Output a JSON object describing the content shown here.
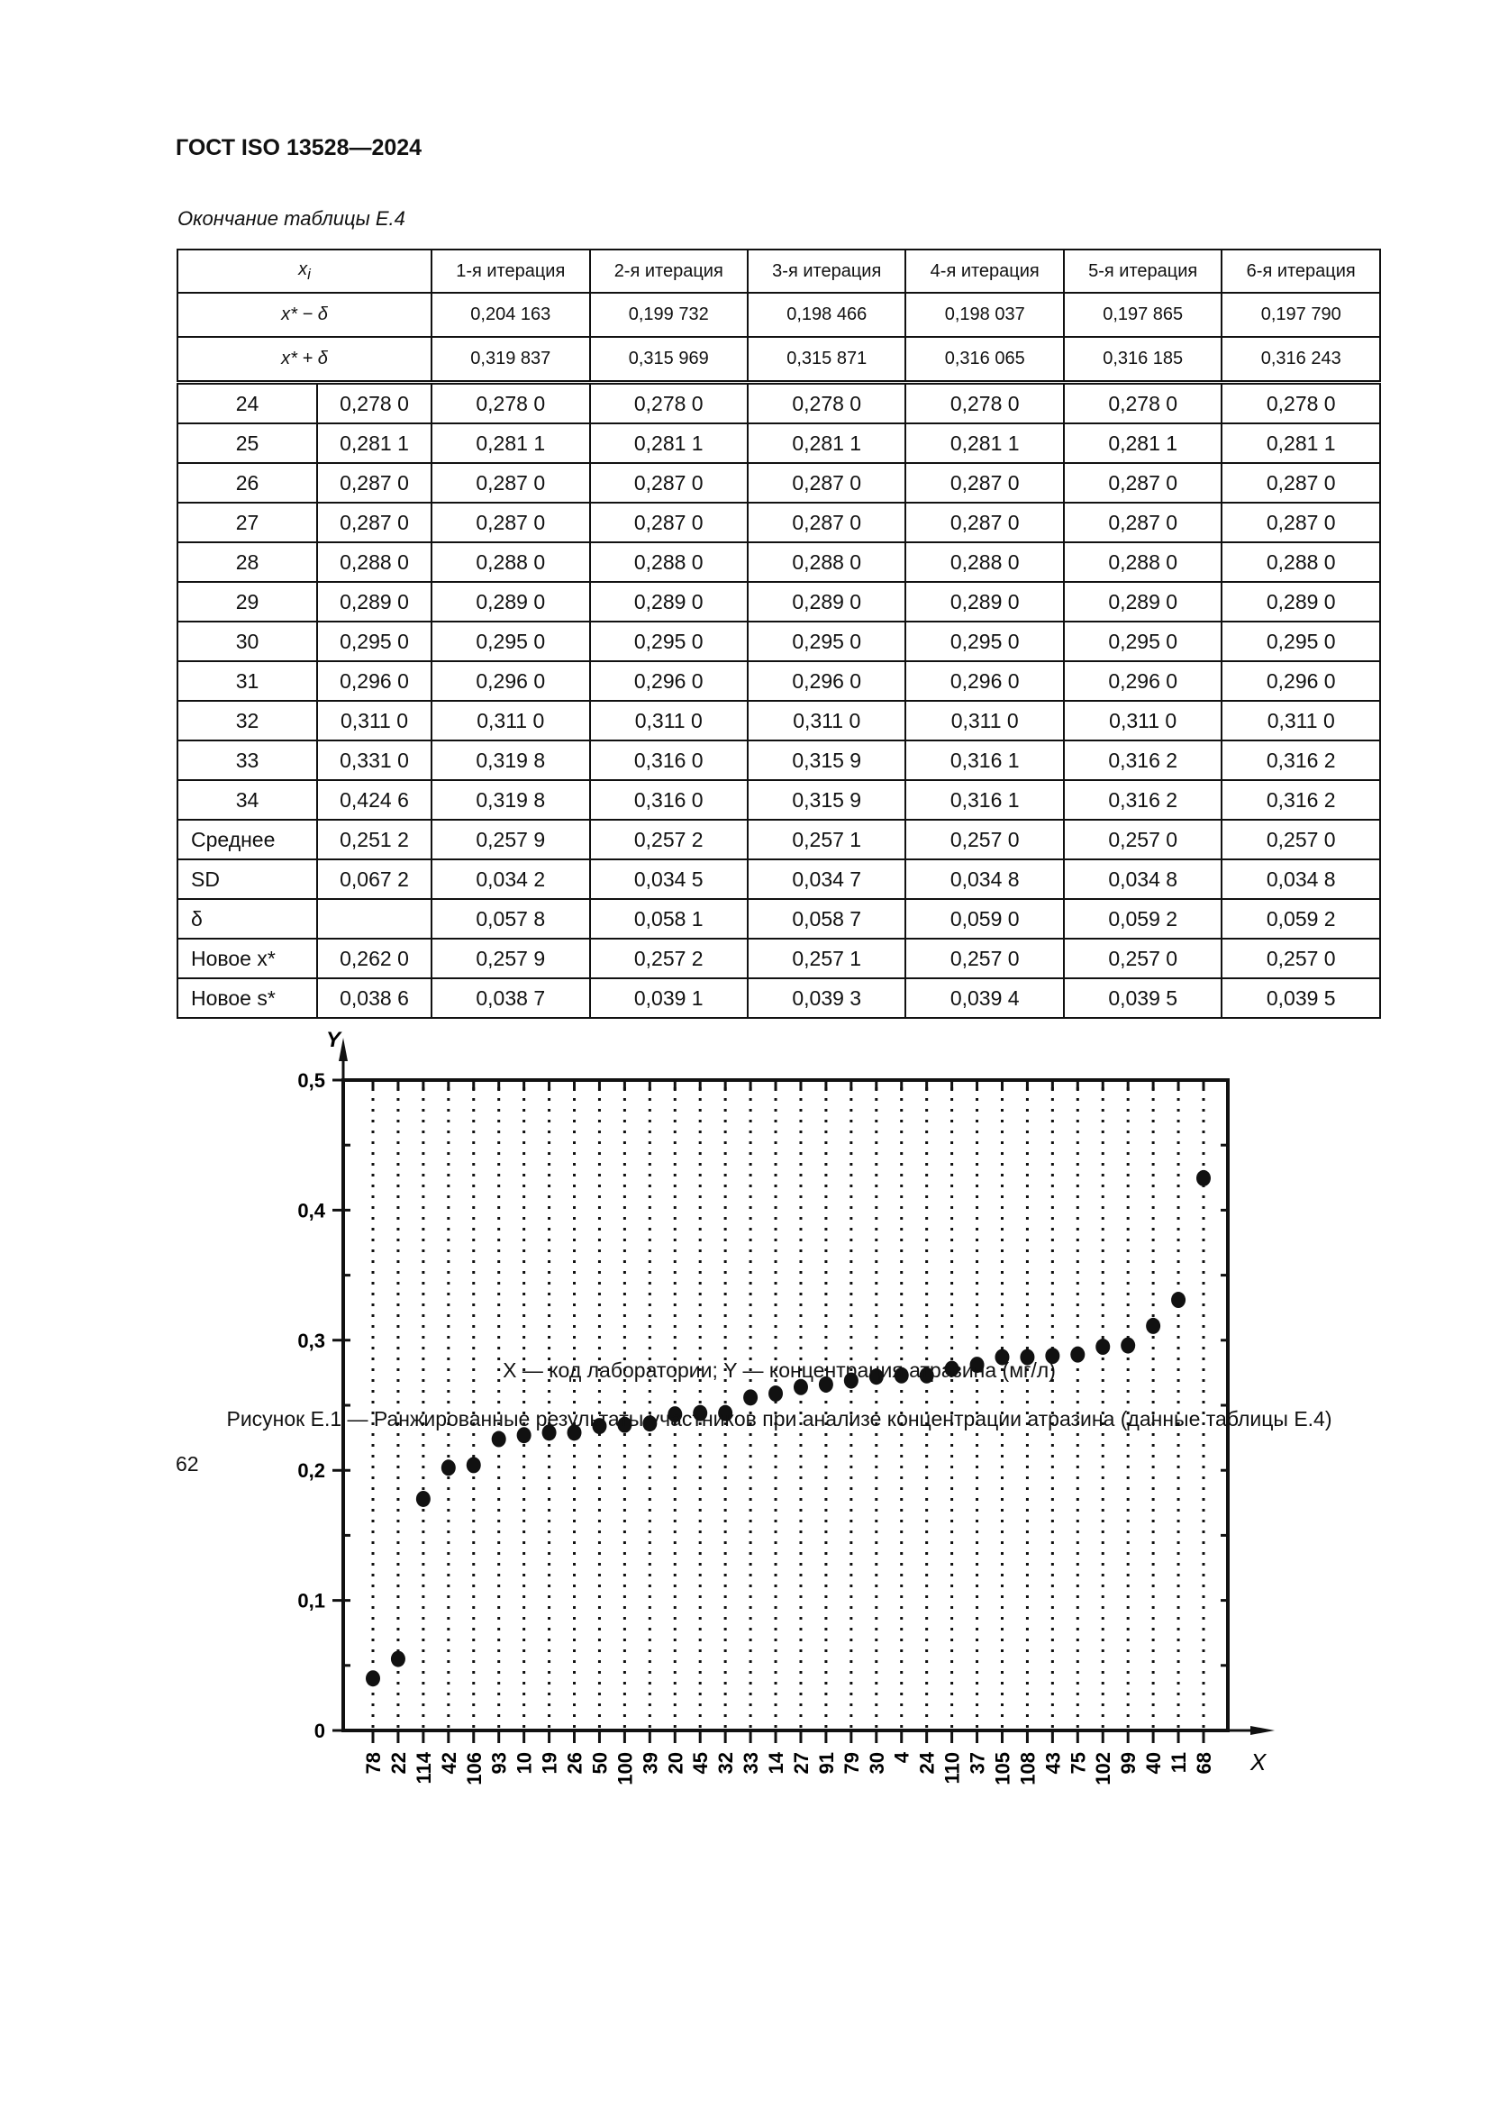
{
  "header": {
    "title": "ГОСТ ISO 13528—2024"
  },
  "table": {
    "caption": "Окончание таблицы Е.4",
    "col_header": {
      "xi": "x",
      "xi_sub": "i",
      "iterations": [
        "1-я итерация",
        "2-я итерация",
        "3-я итерация",
        "4-я итерация",
        "5-я итерация",
        "6-я итерация"
      ]
    },
    "bounds": [
      {
        "label": "x* − δ",
        "values": [
          "0,204 163",
          "0,199 732",
          "0,198 466",
          "0,198 037",
          "0,197 865",
          "0,197 790"
        ]
      },
      {
        "label": "x* + δ",
        "values": [
          "0,319 837",
          "0,315 969",
          "0,315 871",
          "0,316 065",
          "0,316 185",
          "0,316 243"
        ]
      }
    ],
    "rows": [
      {
        "n": "24",
        "x": "0,278 0",
        "it": [
          "0,278 0",
          "0,278 0",
          "0,278 0",
          "0,278 0",
          "0,278 0",
          "0,278 0"
        ]
      },
      {
        "n": "25",
        "x": "0,281 1",
        "it": [
          "0,281 1",
          "0,281 1",
          "0,281 1",
          "0,281 1",
          "0,281 1",
          "0,281 1"
        ]
      },
      {
        "n": "26",
        "x": "0,287 0",
        "it": [
          "0,287 0",
          "0,287 0",
          "0,287 0",
          "0,287 0",
          "0,287 0",
          "0,287 0"
        ]
      },
      {
        "n": "27",
        "x": "0,287 0",
        "it": [
          "0,287 0",
          "0,287 0",
          "0,287 0",
          "0,287 0",
          "0,287 0",
          "0,287 0"
        ]
      },
      {
        "n": "28",
        "x": "0,288 0",
        "it": [
          "0,288 0",
          "0,288 0",
          "0,288 0",
          "0,288 0",
          "0,288 0",
          "0,288 0"
        ]
      },
      {
        "n": "29",
        "x": "0,289 0",
        "it": [
          "0,289 0",
          "0,289 0",
          "0,289 0",
          "0,289 0",
          "0,289 0",
          "0,289 0"
        ]
      },
      {
        "n": "30",
        "x": "0,295 0",
        "it": [
          "0,295 0",
          "0,295 0",
          "0,295 0",
          "0,295 0",
          "0,295 0",
          "0,295 0"
        ]
      },
      {
        "n": "31",
        "x": "0,296 0",
        "it": [
          "0,296 0",
          "0,296 0",
          "0,296 0",
          "0,296 0",
          "0,296 0",
          "0,296 0"
        ]
      },
      {
        "n": "32",
        "x": "0,311 0",
        "it": [
          "0,311 0",
          "0,311 0",
          "0,311 0",
          "0,311 0",
          "0,311 0",
          "0,311 0"
        ]
      },
      {
        "n": "33",
        "x": "0,331 0",
        "it": [
          "0,319 8",
          "0,316 0",
          "0,315 9",
          "0,316 1",
          "0,316 2",
          "0,316 2"
        ]
      },
      {
        "n": "34",
        "x": "0,424 6",
        "it": [
          "0,319 8",
          "0,316 0",
          "0,315 9",
          "0,316 1",
          "0,316 2",
          "0,316 2"
        ]
      }
    ],
    "stats": [
      {
        "label": "Среднее",
        "x": "0,251 2",
        "it": [
          "0,257 9",
          "0,257 2",
          "0,257 1",
          "0,257 0",
          "0,257 0",
          "0,257 0"
        ]
      },
      {
        "label": "SD",
        "x": "0,067 2",
        "it": [
          "0,034 2",
          "0,034 5",
          "0,034 7",
          "0,034 8",
          "0,034 8",
          "0,034 8"
        ]
      },
      {
        "label": "δ",
        "x": "",
        "it": [
          "0,057 8",
          "0,058 1",
          "0,058 7",
          "0,059 0",
          "0,059 2",
          "0,059 2"
        ]
      },
      {
        "label": "Новое x*",
        "x": "0,262 0",
        "it": [
          "0,257 9",
          "0,257 2",
          "0,257 1",
          "0,257 0",
          "0,257 0",
          "0,257 0"
        ]
      },
      {
        "label": "Новое s*",
        "x": "0,038 6",
        "it": [
          "0,038 7",
          "0,039 1",
          "0,039 3",
          "0,039 4",
          "0,039 5",
          "0,039 5"
        ]
      }
    ]
  },
  "chart_data": {
    "type": "scatter",
    "xlabel": "X",
    "ylabel": "Y",
    "categories": [
      "78",
      "22",
      "114",
      "42",
      "106",
      "93",
      "10",
      "19",
      "26",
      "50",
      "100",
      "39",
      "20",
      "45",
      "32",
      "33",
      "14",
      "27",
      "91",
      "79",
      "30",
      "4",
      "24",
      "110",
      "37",
      "105",
      "108",
      "43",
      "75",
      "102",
      "99",
      "40",
      "11",
      "68"
    ],
    "values": [
      0.04,
      0.055,
      0.178,
      0.202,
      0.204,
      0.224,
      0.227,
      0.229,
      0.229,
      0.234,
      0.235,
      0.236,
      0.243,
      0.244,
      0.244,
      0.256,
      0.259,
      0.264,
      0.266,
      0.269,
      0.272,
      0.273,
      0.273,
      0.278,
      0.2811,
      0.287,
      0.287,
      0.288,
      0.289,
      0.295,
      0.296,
      0.311,
      0.331,
      0.4246
    ],
    "ylim": [
      0,
      0.5
    ],
    "yticks": [
      "0",
      "0,1",
      "0,2",
      "0,3",
      "0,4",
      "0,5"
    ],
    "grid": "vertical dotted lines at each category"
  },
  "figure": {
    "legend": "X — код лаборатории; Y — концентрация атразина (мг/л)",
    "caption": "Рисунок Е.1 — Ранжированные результаты участников при анализе концентрации атразина (данные таблицы Е.4)"
  },
  "page_number": "62"
}
